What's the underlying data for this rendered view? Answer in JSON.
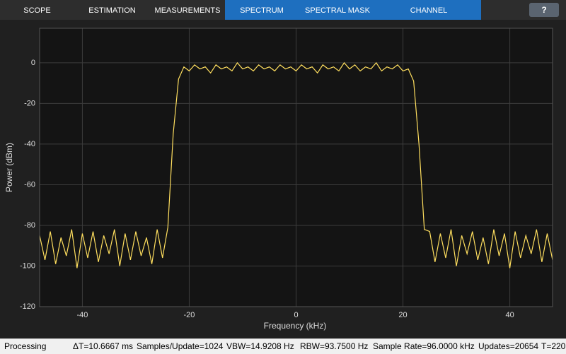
{
  "tabs": [
    "SCOPE",
    "ESTIMATION",
    "MEASUREMENTS",
    "SPECTRUM",
    "SPECTRAL MASK",
    "CHANNEL MEASUREMENTS"
  ],
  "help": "?",
  "status": [
    "Processing",
    "ΔT=10.6667 ms",
    "Samples/Update=1024",
    "VBW=14.9208 Hz",
    "RBW=93.7500 Hz",
    "Sample Rate=96.0000 kHz",
    "Updates=20654",
    "T=220"
  ],
  "chart_data": {
    "type": "line",
    "x_label": "Frequency (kHz)",
    "y_label": "Power (dBm)",
    "color": "#ffdf5f",
    "grid": true,
    "xlim": [
      -48,
      48
    ],
    "ylim": [
      -120,
      17
    ],
    "xticks": [
      -40,
      -20,
      0,
      20,
      40
    ],
    "yticks": [
      -120,
      -100,
      -80,
      -60,
      -40,
      -20,
      0
    ],
    "x": [
      -48,
      -47,
      -46,
      -45,
      -44,
      -43,
      -42,
      -41,
      -40,
      -39,
      -38,
      -37,
      -36,
      -35,
      -34,
      -33,
      -32,
      -31,
      -30,
      -29,
      -28,
      -27,
      -26,
      -25,
      -24,
      -23,
      -22,
      -21,
      -20,
      -19,
      -18,
      -17,
      -16,
      -15,
      -14,
      -13,
      -12,
      -11,
      -10,
      -9,
      -8,
      -7,
      -6,
      -5,
      -4,
      -3,
      -2,
      -1,
      0,
      1,
      2,
      3,
      4,
      5,
      6,
      7,
      8,
      9,
      10,
      11,
      12,
      13,
      14,
      15,
      16,
      17,
      18,
      19,
      20,
      21,
      22,
      23,
      24,
      25,
      26,
      27,
      28,
      29,
      30,
      31,
      32,
      33,
      34,
      35,
      36,
      37,
      38,
      39,
      40,
      41,
      42,
      43,
      44,
      45,
      46,
      47,
      48
    ],
    "values": [
      -85,
      -97,
      -83,
      -99,
      -86,
      -95,
      -82,
      -101,
      -84,
      -96,
      -83,
      -98,
      -85,
      -94,
      -82,
      -100,
      -84,
      -97,
      -83,
      -95,
      -86,
      -99,
      -82,
      -96,
      -81,
      -35,
      -8,
      -2,
      -4,
      -1,
      -3,
      -2,
      -5,
      -1,
      -3,
      -2,
      -4,
      0,
      -3,
      -2,
      -4,
      -1,
      -3,
      -2,
      -4,
      -1,
      -3,
      -2,
      -4,
      -1,
      -3,
      -2,
      -5,
      -1,
      -3,
      -2,
      -4,
      0,
      -3,
      -1,
      -4,
      -2,
      -3,
      0,
      -4,
      -2,
      -3,
      -1,
      -4,
      -3,
      -9,
      -40,
      -82,
      -83,
      -98,
      -84,
      -96,
      -82,
      -100,
      -85,
      -94,
      -83,
      -97,
      -86,
      -99,
      -82,
      -95,
      -84,
      -101,
      -83,
      -96,
      -85,
      -94,
      -82,
      -98,
      -84,
      -97
    ]
  }
}
